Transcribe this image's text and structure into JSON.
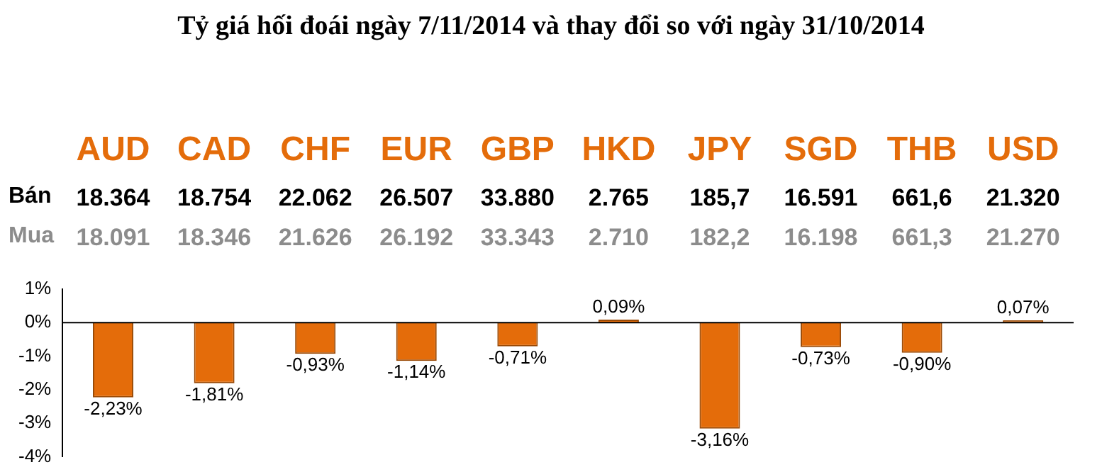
{
  "chart_data": {
    "type": "bar",
    "title": "Tỷ giá hối đoái ngày 7/11/2014 và thay đổi so với ngày 31/10/2014",
    "categories": [
      "AUD",
      "CAD",
      "CHF",
      "EUR",
      "GBP",
      "HKD",
      "JPY",
      "SGD",
      "THB",
      "USD"
    ],
    "values": [
      -2.23,
      -1.81,
      -0.93,
      -1.14,
      -0.71,
      0.09,
      -3.16,
      -0.73,
      -0.9,
      0.07
    ],
    "value_labels": [
      "-2,23%",
      "-1,81%",
      "-0,93%",
      "-1,14%",
      "-0,71%",
      "0,09%",
      "-3,16%",
      "-0,73%",
      "-0,90%",
      "0,07%"
    ],
    "color": "#e46c0a",
    "ylim": [
      -4,
      1
    ],
    "yticks": [
      {
        "value": 1,
        "label": "1%"
      },
      {
        "value": 0,
        "label": "0%"
      },
      {
        "value": -1,
        "label": "-1%"
      },
      {
        "value": -2,
        "label": "-2%"
      },
      {
        "value": -3,
        "label": "-3%"
      },
      {
        "value": -4,
        "label": "-4%"
      }
    ],
    "tick_labels": "y",
    "annotations": [
      "Bán",
      "18.364",
      "18.754",
      "22.062",
      "26.507",
      "33.880",
      "2.765",
      "185,7",
      "16.591",
      "661,6",
      "21.320",
      "Mua",
      "18.091",
      "18.346",
      "21.626",
      "26.192",
      "33.343",
      "2.710",
      "182,2",
      "16.198",
      "661,3",
      "21.270"
    ]
  }
}
